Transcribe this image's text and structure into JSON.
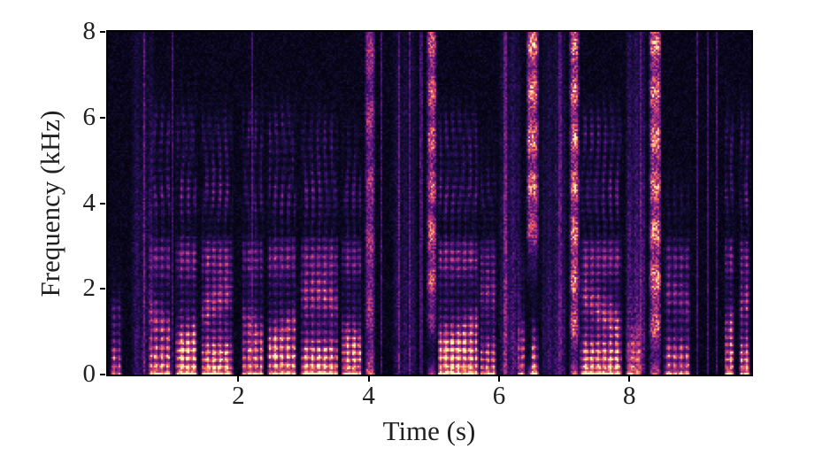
{
  "chart_data": {
    "type": "heatmap",
    "subtype": "spectrogram",
    "title": "",
    "xlabel": "Time (s)",
    "ylabel": "Frequency (kHz)",
    "xlim": [
      0,
      9.87
    ],
    "ylim": [
      0,
      8
    ],
    "x_ticks": [
      2,
      4,
      6,
      8
    ],
    "y_ticks": [
      0,
      2,
      4,
      6,
      8
    ],
    "grid": false,
    "legend": null,
    "axis_color": "#000000",
    "label_color": "#202020",
    "background_color": "#ffffff",
    "seed": 42,
    "colormap": {
      "name": "magma",
      "anchors": [
        [
          0.0,
          "#000004"
        ],
        [
          0.1,
          "#140e36"
        ],
        [
          0.2,
          "#3b0f70"
        ],
        [
          0.3,
          "#641a80"
        ],
        [
          0.4,
          "#8c2981"
        ],
        [
          0.5,
          "#b73779"
        ],
        [
          0.6,
          "#de4968"
        ],
        [
          0.7,
          "#f7705c"
        ],
        [
          0.8,
          "#fe9f6d"
        ],
        [
          0.9,
          "#fecf92"
        ],
        [
          1.0,
          "#fcfdbf"
        ]
      ]
    },
    "segments": [
      {
        "t0": 0.03,
        "t1": 0.22,
        "kind": "voiced",
        "level": 0.6,
        "fmax": 1.6
      },
      {
        "t0": 0.35,
        "t1": 0.72,
        "kind": "wash",
        "level": 0.3
      },
      {
        "t0": 0.62,
        "t1": 0.98,
        "kind": "voiced",
        "level": 0.8,
        "fmax": 7.5
      },
      {
        "t0": 1.03,
        "t1": 1.38,
        "kind": "voiced",
        "level": 1.0,
        "fmax": 7.8
      },
      {
        "t0": 1.42,
        "t1": 1.92,
        "kind": "voiced",
        "level": 1.0,
        "fmax": 6.4
      },
      {
        "t0": 2.04,
        "t1": 2.4,
        "kind": "voiced",
        "level": 0.75,
        "fmax": 7.8
      },
      {
        "t0": 2.44,
        "t1": 2.9,
        "kind": "voiced",
        "level": 0.9,
        "fmax": 7.6
      },
      {
        "t0": 2.94,
        "t1": 3.54,
        "kind": "voiced",
        "level": 0.95,
        "fmax": 6.0
      },
      {
        "t0": 3.57,
        "t1": 3.9,
        "kind": "voiced",
        "level": 0.85,
        "fmax": 5.4
      },
      {
        "t0": 3.93,
        "t1": 4.1,
        "kind": "burst",
        "level": 0.8
      },
      {
        "t0": 4.35,
        "t1": 4.75,
        "kind": "wash",
        "level": 0.25
      },
      {
        "t0": 4.88,
        "t1": 5.06,
        "kind": "fricative",
        "level": 0.85,
        "fmin": 1.2
      },
      {
        "t0": 5.06,
        "t1": 5.7,
        "kind": "voiced",
        "level": 1.0,
        "fmax": 6.4
      },
      {
        "t0": 5.7,
        "t1": 5.98,
        "kind": "voiced",
        "level": 0.7,
        "fmax": 5.0
      },
      {
        "t0": 6.0,
        "t1": 6.35,
        "kind": "wash",
        "level": 0.45
      },
      {
        "t0": 6.28,
        "t1": 6.42,
        "kind": "voiced",
        "level": 0.6,
        "fmax": 2.4
      },
      {
        "t0": 6.42,
        "t1": 6.62,
        "kind": "fricative",
        "level": 0.95,
        "fmin": 3.0
      },
      {
        "t0": 6.48,
        "t1": 6.62,
        "kind": "voiced",
        "level": 0.7,
        "fmax": 1.4
      },
      {
        "t0": 6.65,
        "t1": 7.05,
        "kind": "wash",
        "level": 0.3
      },
      {
        "t0": 7.08,
        "t1": 7.24,
        "kind": "fricative",
        "level": 1.0,
        "fmin": 0.5
      },
      {
        "t0": 7.24,
        "t1": 7.9,
        "kind": "voiced",
        "level": 1.0,
        "fmax": 6.8
      },
      {
        "t0": 7.93,
        "t1": 8.27,
        "kind": "wash",
        "level": 0.5
      },
      {
        "t0": 7.95,
        "t1": 8.2,
        "kind": "voiced",
        "level": 0.55,
        "fmax": 1.2
      },
      {
        "t0": 8.3,
        "t1": 8.5,
        "kind": "fricative",
        "level": 0.95,
        "fmin": 0.5
      },
      {
        "t0": 8.52,
        "t1": 8.95,
        "kind": "voiced",
        "level": 0.65,
        "fmax": 4.0
      },
      {
        "t0": 9.45,
        "t1": 9.62,
        "kind": "voiced",
        "level": 0.92,
        "fmax": 7.8
      },
      {
        "t0": 9.68,
        "t1": 9.86,
        "kind": "voiced",
        "level": 0.92,
        "fmax": 7.8
      }
    ],
    "faint_lines": [
      0.56,
      1.0,
      2.2,
      4.18,
      4.47,
      4.63,
      4.8,
      6.1,
      6.94,
      8.18,
      9.05,
      9.2,
      9.35
    ]
  }
}
